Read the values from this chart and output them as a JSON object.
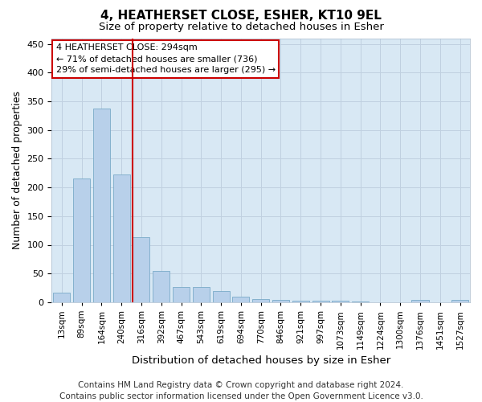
{
  "title": "4, HEATHERSET CLOSE, ESHER, KT10 9EL",
  "subtitle": "Size of property relative to detached houses in Esher",
  "xlabel": "Distribution of detached houses by size in Esher",
  "ylabel": "Number of detached properties",
  "categories": [
    "13sqm",
    "89sqm",
    "164sqm",
    "240sqm",
    "316sqm",
    "392sqm",
    "467sqm",
    "543sqm",
    "619sqm",
    "694sqm",
    "770sqm",
    "846sqm",
    "921sqm",
    "997sqm",
    "1073sqm",
    "1149sqm",
    "1224sqm",
    "1300sqm",
    "1376sqm",
    "1451sqm",
    "1527sqm"
  ],
  "values": [
    17,
    215,
    338,
    222,
    113,
    54,
    26,
    26,
    20,
    10,
    6,
    4,
    2,
    2,
    2,
    1,
    0,
    0,
    4,
    0,
    4
  ],
  "bar_color": "#b8d0ea",
  "bar_edge_color": "#7aaac8",
  "vline_index": 4,
  "vline_color": "#cc0000",
  "annotation_text": "4 HEATHERSET CLOSE: 294sqm\n← 71% of detached houses are smaller (736)\n29% of semi-detached houses are larger (295) →",
  "annotation_box_facecolor": "#ffffff",
  "annotation_box_edgecolor": "#cc0000",
  "ylim": [
    0,
    460
  ],
  "yticks": [
    0,
    50,
    100,
    150,
    200,
    250,
    300,
    350,
    400,
    450
  ],
  "grid_color": "#c0d0e0",
  "background_color": "#d8e8f4",
  "footer_text": "Contains HM Land Registry data © Crown copyright and database right 2024.\nContains public sector information licensed under the Open Government Licence v3.0.",
  "title_fontsize": 11,
  "subtitle_fontsize": 9.5,
  "axis_label_fontsize": 9,
  "tick_fontsize": 7.5,
  "annotation_fontsize": 8,
  "footer_fontsize": 7.5
}
